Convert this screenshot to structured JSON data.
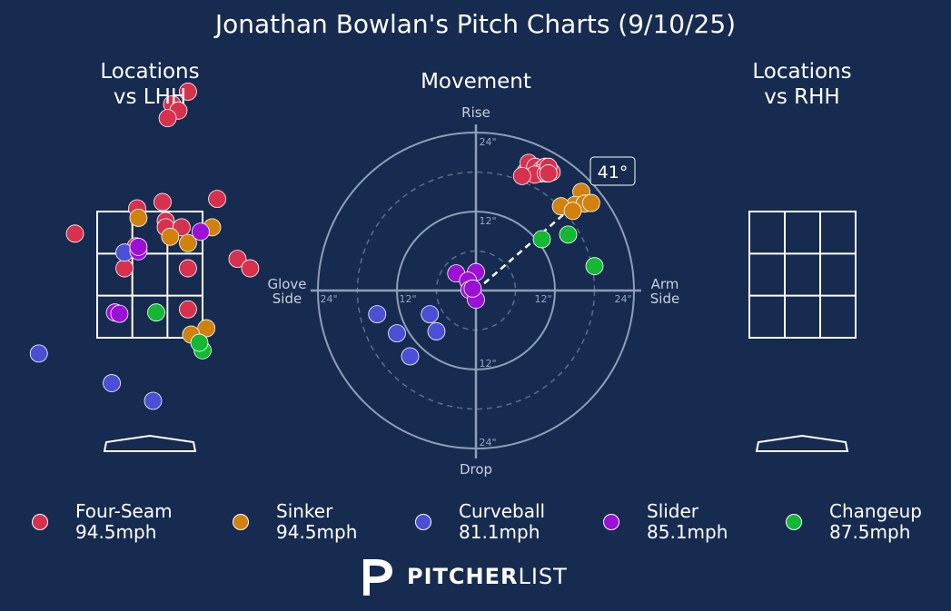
{
  "title": "Jonathan Bowlan's Pitch Charts (9/10/25)",
  "panels": {
    "lhh_title_line1": "Locations",
    "lhh_title_line2": "vs LHH",
    "movement_title": "Movement",
    "rhh_title_line1": "Locations",
    "rhh_title_line2": "vs RHH"
  },
  "movement_axes": {
    "top": "Rise",
    "bottom": "Drop",
    "left_line1": "Glove",
    "left_line2": "Side",
    "right_line1": "Arm",
    "right_line2": "Side",
    "ring_labels": [
      "12\"",
      "24\""
    ],
    "arm_angle_label": "41°"
  },
  "legend": [
    {
      "pitch": "Four-Seam",
      "velo": "94.5mph",
      "color": "#d7314d"
    },
    {
      "pitch": "Sinker",
      "velo": "94.5mph",
      "color": "#d1820d"
    },
    {
      "pitch": "Curveball",
      "velo": "81.1mph",
      "color": "#4a4fd6"
    },
    {
      "pitch": "Slider",
      "velo": "85.1mph",
      "color": "#9b0fd6"
    },
    {
      "pitch": "Changeup",
      "velo": "87.5mph",
      "color": "#14b833"
    }
  ],
  "logo": {
    "bold": "PITCHER",
    "light": "LIST"
  },
  "chart_data": [
    {
      "type": "scatter",
      "title": "Locations vs LHH",
      "x_units": "plate location (x)",
      "y_units": "plate location (z)",
      "strike_zone": {
        "x": [
          -0.83,
          0.83
        ],
        "z": [
          1.5,
          3.5
        ]
      },
      "series": [
        {
          "name": "Four-Seam",
          "points": [
            [
              0.6,
              5.4
            ],
            [
              0.35,
              5.2
            ],
            [
              0.45,
              5.1
            ],
            [
              0.28,
              4.98
            ],
            [
              1.06,
              3.7
            ],
            [
              0.2,
              3.65
            ],
            [
              -0.2,
              3.55
            ],
            [
              0.25,
              3.35
            ],
            [
              0.25,
              3.25
            ],
            [
              0.5,
              3.25
            ],
            [
              -1.18,
              3.15
            ],
            [
              -0.22,
              2.95
            ],
            [
              1.38,
              2.75
            ],
            [
              -0.4,
              2.6
            ],
            [
              0.6,
              2.6
            ],
            [
              0.6,
              1.95
            ],
            [
              1.58,
              2.6
            ]
          ]
        },
        {
          "name": "Sinker",
          "points": [
            [
              -0.18,
              3.4
            ],
            [
              0.98,
              3.25
            ],
            [
              0.32,
              3.1
            ],
            [
              0.6,
              3.0
            ],
            [
              0.89,
              1.65
            ],
            [
              0.65,
              1.55
            ]
          ]
        },
        {
          "name": "Curveball",
          "points": [
            [
              -0.4,
              2.85
            ],
            [
              -1.75,
              1.25
            ],
            [
              -0.6,
              0.78
            ],
            [
              0.05,
              0.5
            ]
          ]
        },
        {
          "name": "Slider",
          "points": [
            [
              0.8,
              3.18
            ],
            [
              -0.18,
              2.87
            ],
            [
              -0.18,
              2.94
            ],
            [
              -0.55,
              1.9
            ],
            [
              -0.48,
              1.88
            ]
          ]
        },
        {
          "name": "Changeup",
          "points": [
            [
              0.1,
              1.9
            ],
            [
              0.83,
              1.3
            ],
            [
              0.78,
              1.42
            ]
          ]
        }
      ]
    },
    {
      "type": "scatter",
      "title": "Movement",
      "x_units": "inches (negative = glove side, positive = arm side)",
      "y_units": "inches (positive = rise, negative = drop)",
      "rings_in": [
        6,
        12,
        18,
        24
      ],
      "arm_angle_deg": 41,
      "series": [
        {
          "name": "Four-Seam",
          "points": [
            [
              7.5,
              18
            ],
            [
              8.0,
              19.4
            ],
            [
              9.0,
              18.8
            ],
            [
              10.0,
              18.4
            ],
            [
              10.5,
              18.8
            ],
            [
              11.5,
              18
            ],
            [
              9.8,
              17.8
            ],
            [
              8.9,
              17.6
            ],
            [
              10.6,
              17.8
            ],
            [
              11.0,
              18.8
            ],
            [
              11.0,
              17.8
            ],
            [
              7.0,
              17.4
            ]
          ]
        },
        {
          "name": "Sinker",
          "points": [
            [
              16,
              15
            ],
            [
              15,
              13
            ],
            [
              16.5,
              13.2
            ],
            [
              12.9,
              12.8
            ],
            [
              17.5,
              13.3
            ],
            [
              14.7,
              12.1
            ]
          ]
        },
        {
          "name": "Curveball",
          "points": [
            [
              -15,
              -3.6
            ],
            [
              -12,
              -6.5
            ],
            [
              -7,
              -3.6
            ],
            [
              -6,
              -6.2
            ],
            [
              -10,
              -10
            ]
          ]
        },
        {
          "name": "Slider",
          "points": [
            [
              -3,
              2.6
            ],
            [
              0,
              2.8
            ],
            [
              -1.2,
              1.5
            ],
            [
              -1.0,
              0.1
            ],
            [
              0,
              -1.4
            ],
            [
              -0.5,
              0.3
            ]
          ]
        },
        {
          "name": "Changeup",
          "points": [
            [
              10,
              7.8
            ],
            [
              14,
              8.5
            ],
            [
              18,
              3.7
            ]
          ]
        }
      ]
    },
    {
      "type": "scatter",
      "title": "Locations vs RHH",
      "strike_zone": {
        "x": [
          -0.83,
          0.83
        ],
        "z": [
          1.5,
          3.5
        ]
      },
      "series": []
    }
  ]
}
